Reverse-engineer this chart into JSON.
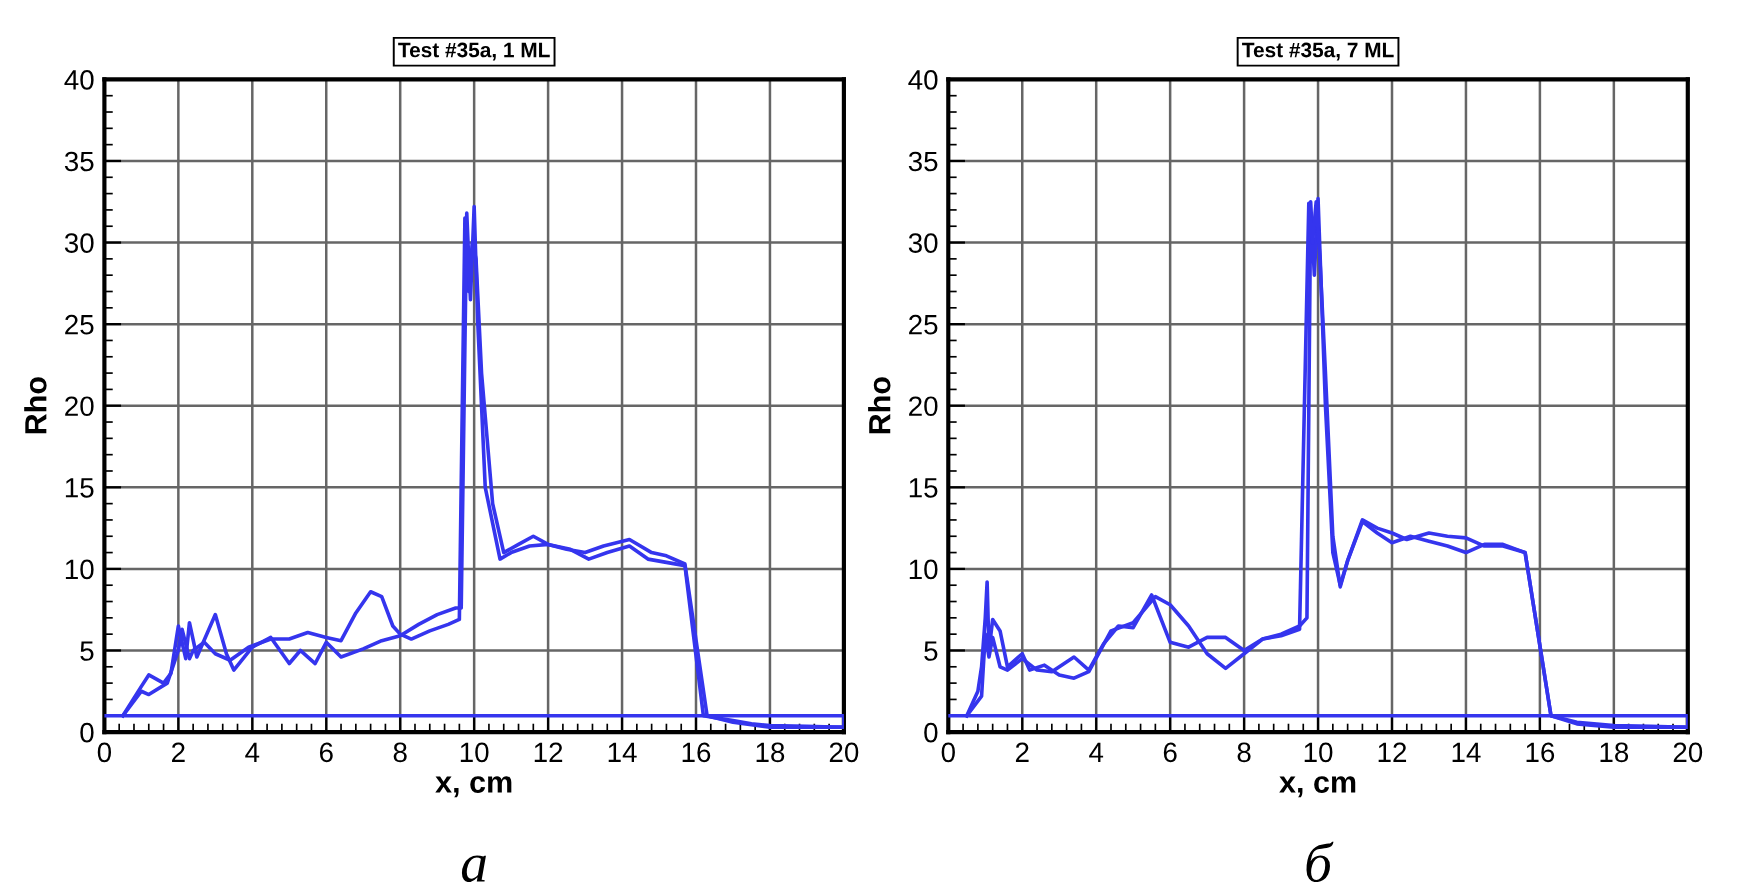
{
  "chart_data": [
    {
      "type": "line",
      "title": "Test #35a, 1 ML",
      "xlabel": "x, cm",
      "ylabel": "Rho",
      "annotations": [
        "а"
      ],
      "xlim": [
        0,
        20
      ],
      "ylim": [
        0,
        40
      ],
      "xticks": [
        0,
        2,
        4,
        6,
        8,
        10,
        12,
        14,
        16,
        18,
        20
      ],
      "yticks": [
        0,
        5,
        10,
        15,
        20,
        25,
        30,
        35,
        40
      ],
      "grid": true,
      "legend": false,
      "marker": "none",
      "line_style": "solid",
      "series": [
        {
          "color": "#3535ee",
          "x": [
            0.5,
            1.0,
            1.2,
            1.7,
            2.0,
            2.1,
            2.3,
            2.4,
            2.7,
            3.0,
            3.4,
            3.9,
            4.5,
            5.0,
            5.5,
            6.0,
            6.4,
            6.8,
            7.2,
            7.5,
            7.8,
            8.0,
            8.3,
            8.8,
            9.3,
            9.6,
            9.75,
            9.85,
            9.95,
            10.05,
            10.2,
            10.5,
            10.8,
            11.2,
            11.6,
            12.0,
            12.6,
            13.1,
            13.6,
            14.2,
            14.7,
            15.2,
            15.7,
            16.2,
            17.0,
            17.5,
            18.0,
            19.0,
            19.9
          ],
          "values": [
            1,
            2.5,
            2.3,
            3.0,
            5.0,
            6.3,
            4.5,
            5.0,
            5.5,
            4.8,
            4.4,
            5.2,
            5.7,
            5.7,
            6.1,
            5.8,
            5.6,
            7.3,
            8.6,
            8.3,
            6.5,
            6.0,
            5.7,
            6.2,
            6.6,
            6.9,
            31.5,
            27,
            30,
            29,
            22,
            14,
            11,
            11.5,
            12.0,
            11.5,
            11.2,
            10.6,
            11.0,
            11.4,
            10.6,
            10.4,
            10.2,
            1.0,
            0.7,
            0.5,
            0.4,
            0.35,
            0.3
          ]
        },
        {
          "color": "#3535ee",
          "x": [
            0.5,
            1.0,
            1.2,
            1.6,
            1.8,
            2.0,
            2.2,
            2.3,
            2.5,
            3.0,
            3.3,
            3.5,
            4.0,
            4.5,
            5.0,
            5.3,
            5.7,
            6.0,
            6.4,
            7.0,
            7.5,
            8.0,
            8.5,
            9.0,
            9.5,
            9.65,
            9.8,
            9.9,
            10.0,
            10.1,
            10.3,
            10.7,
            11.0,
            11.5,
            12.0,
            12.5,
            13.0,
            13.5,
            14.2,
            14.8,
            15.2,
            15.7,
            16.3,
            17.0,
            18.0,
            19.0,
            19.9
          ],
          "values": [
            1,
            2.8,
            3.5,
            3.0,
            3.6,
            6.5,
            4.5,
            6.7,
            4.6,
            7.2,
            4.8,
            3.8,
            5.2,
            5.8,
            4.2,
            5.0,
            4.2,
            5.5,
            4.6,
            5.1,
            5.6,
            5.9,
            6.6,
            7.2,
            7.6,
            7.6,
            31.8,
            26.5,
            32.2,
            25,
            15,
            10.6,
            11,
            11.4,
            11.5,
            11.2,
            11.0,
            11.4,
            11.8,
            11.0,
            10.8,
            10.3,
            1.0,
            0.6,
            0.3,
            0.3,
            0.3
          ]
        },
        {
          "color": "#3535ee",
          "x": [
            0,
            20,
            20
          ],
          "values": [
            1,
            1,
            0.3
          ]
        }
      ]
    },
    {
      "type": "line",
      "title": "Test #35a, 7 ML",
      "xlabel": "x, cm",
      "ylabel": "Rho",
      "annotations": [
        "б"
      ],
      "xlim": [
        0,
        20
      ],
      "ylim": [
        0,
        40
      ],
      "xticks": [
        0,
        2,
        4,
        6,
        8,
        10,
        12,
        14,
        16,
        18,
        20
      ],
      "yticks": [
        0,
        5,
        10,
        15,
        20,
        25,
        30,
        35,
        40
      ],
      "grid": true,
      "legend": false,
      "marker": "none",
      "line_style": "solid",
      "series": [
        {
          "color": "#3535ee",
          "x": [
            0.5,
            0.8,
            0.9,
            1.0,
            1.05,
            1.1,
            1.2,
            1.4,
            1.6,
            2.0,
            2.2,
            2.6,
            3.0,
            3.4,
            3.8,
            4.4,
            5.0,
            5.6,
            6.0,
            6.5,
            7.0,
            7.5,
            8.0,
            8.5,
            9.0,
            9.5,
            9.7,
            9.8,
            9.9,
            10.0,
            10.2,
            10.4,
            10.6,
            10.8,
            11.2,
            11.6,
            12.0,
            12.5,
            13.0,
            13.5,
            14.0,
            14.5,
            15.0,
            15.6,
            16.3,
            17.0,
            18.0,
            19.0,
            19.9
          ],
          "values": [
            1,
            2.5,
            4,
            7,
            9.2,
            5,
            6.9,
            6.2,
            4.0,
            4.8,
            3.8,
            4.1,
            3.5,
            3.3,
            3.7,
            6.2,
            6.7,
            8.3,
            7.8,
            6.5,
            4.8,
            3.9,
            4.8,
            5.7,
            6.0,
            6.5,
            7.0,
            32.5,
            28,
            32.7,
            20,
            11,
            9,
            10.5,
            12.9,
            12.2,
            11.6,
            12.0,
            11.7,
            11.4,
            11.0,
            11.5,
            11.5,
            11.0,
            1.0,
            0.6,
            0.4,
            0.35,
            0.3
          ]
        },
        {
          "color": "#3535ee",
          "x": [
            0.5,
            0.9,
            1.0,
            1.1,
            1.2,
            1.4,
            1.6,
            2.0,
            2.4,
            2.8,
            3.4,
            3.8,
            4.2,
            4.6,
            5.0,
            5.5,
            6.0,
            6.5,
            7.0,
            7.5,
            8.0,
            8.5,
            9.0,
            9.5,
            9.75,
            9.85,
            9.95,
            10.05,
            10.2,
            10.4,
            10.6,
            10.8,
            11.2,
            11.6,
            12.0,
            12.4,
            13.0,
            13.5,
            14.0,
            14.5,
            15.0,
            15.6,
            16.3,
            17.0,
            18.0,
            19.0,
            19.9
          ],
          "values": [
            1,
            2.2,
            6.0,
            4.6,
            5.8,
            4.0,
            3.8,
            4.5,
            3.8,
            3.7,
            4.6,
            3.8,
            5.4,
            6.5,
            6.4,
            8.4,
            5.5,
            5.2,
            5.8,
            5.8,
            5.0,
            5.7,
            5.9,
            6.3,
            32.4,
            30,
            32.5,
            29,
            22,
            12,
            8.9,
            10.5,
            13.0,
            12.5,
            12.2,
            11.8,
            12.2,
            12.0,
            11.9,
            11.4,
            11.4,
            11.0,
            1.0,
            0.5,
            0.3,
            0.3,
            0.3
          ]
        },
        {
          "color": "#3535ee",
          "x": [
            0,
            20,
            20
          ],
          "values": [
            1,
            1,
            0.3
          ]
        }
      ]
    }
  ]
}
